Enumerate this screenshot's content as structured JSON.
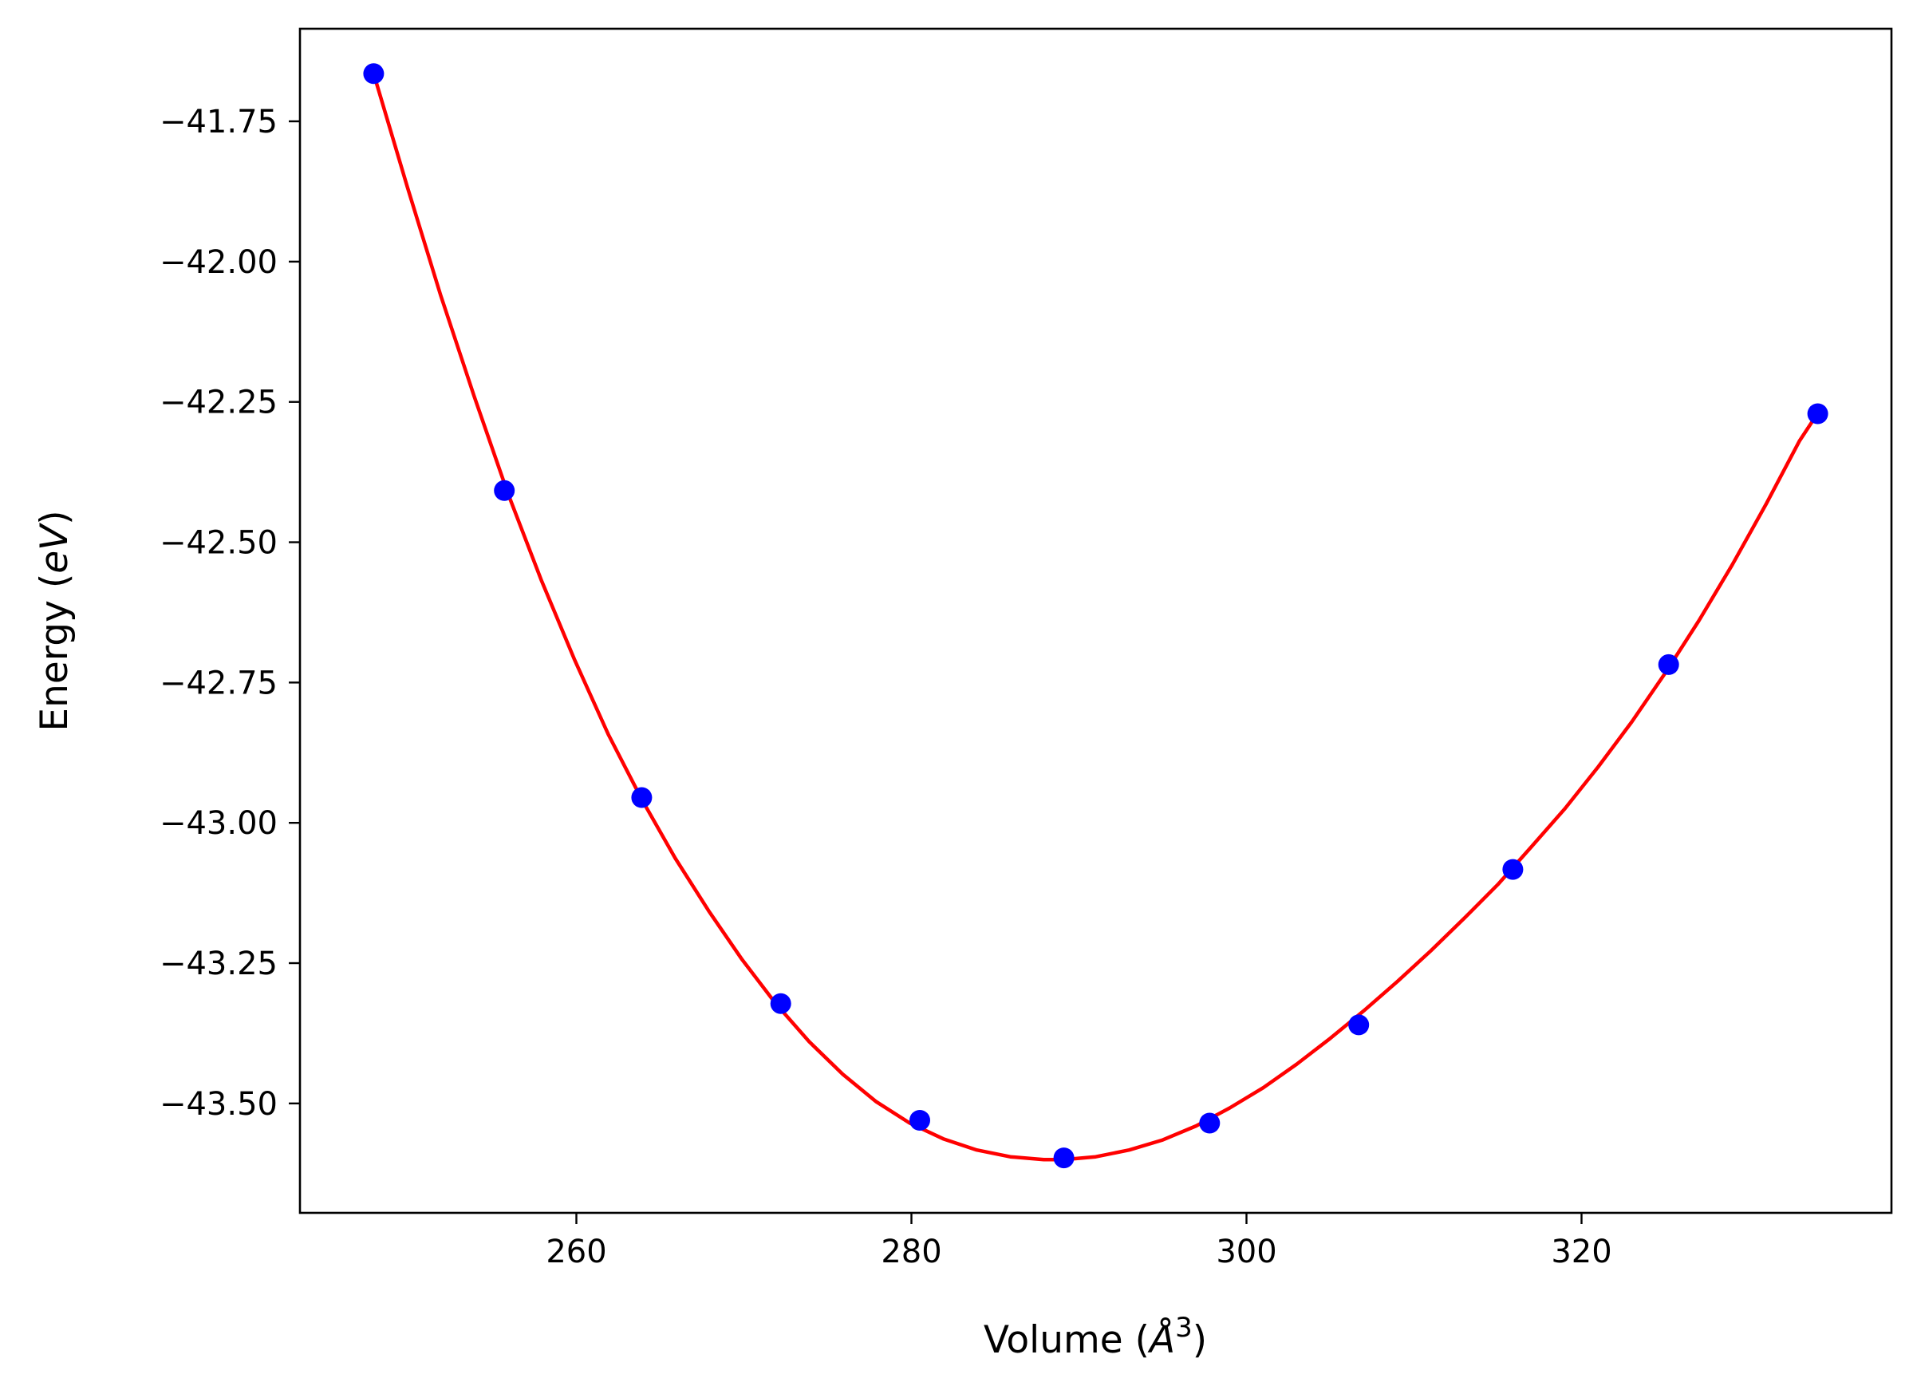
{
  "chart_data": {
    "type": "line",
    "xlabel": "Volume (Å³)",
    "xlabel_parts": {
      "pre": "Volume (",
      "sym": "Å",
      "sup": "3",
      "post": ")"
    },
    "ylabel": "Energy (eV)",
    "ylabel_parts": {
      "pre": "Energy (",
      "italic": "eV",
      "post": ")"
    },
    "xlim": [
      243.5,
      338.5
    ],
    "ylim": [
      -43.695,
      -41.585
    ],
    "xticks": [
      260,
      280,
      300,
      320
    ],
    "xtick_labels": [
      "260",
      "280",
      "300",
      "320"
    ],
    "yticks": [
      -41.75,
      -42.0,
      -42.25,
      -42.5,
      -42.75,
      -43.0,
      -43.25,
      -43.5
    ],
    "ytick_labels": [
      "−41.75",
      "−42.00",
      "−42.25",
      "−42.50",
      "−42.75",
      "−43.00",
      "−43.25",
      "−43.50"
    ],
    "grid": false,
    "series": [
      {
        "style": "line",
        "color": "#ff0000",
        "x": [
          247.9,
          249.9,
          251.9,
          253.9,
          255.9,
          257.9,
          259.9,
          261.9,
          263.9,
          265.9,
          267.9,
          269.9,
          271.9,
          273.9,
          275.9,
          277.9,
          279.9,
          281.9,
          283.9,
          285.9,
          287.9,
          289.1,
          291.0,
          293.0,
          295.0,
          297.0,
          299.0,
          301.0,
          303.0,
          305.0,
          307.0,
          309.0,
          311.0,
          313.0,
          315.0,
          317.0,
          319.0,
          321.0,
          323.0,
          325.0,
          327.0,
          329.0,
          331.0,
          333.0,
          334.1
        ],
        "y": [
          -41.665,
          -41.866,
          -42.06,
          -42.24,
          -42.412,
          -42.567,
          -42.71,
          -42.842,
          -42.958,
          -43.063,
          -43.157,
          -43.244,
          -43.322,
          -43.39,
          -43.448,
          -43.497,
          -43.535,
          -43.563,
          -43.583,
          -43.595,
          -43.6,
          -43.6,
          -43.595,
          -43.583,
          -43.565,
          -43.54,
          -43.508,
          -43.472,
          -43.43,
          -43.384,
          -43.335,
          -43.283,
          -43.228,
          -43.17,
          -43.11,
          -43.043,
          -42.975,
          -42.9,
          -42.82,
          -42.733,
          -42.64,
          -42.54,
          -42.433,
          -42.32,
          -42.27
        ]
      },
      {
        "style": "markers",
        "color": "#0000ff",
        "x": [
          247.9,
          255.7,
          263.9,
          272.2,
          280.5,
          289.1,
          297.8,
          306.7,
          315.9,
          325.2,
          334.1
        ],
        "y": [
          -41.665,
          -42.408,
          -42.955,
          -43.322,
          -43.53,
          -43.597,
          -43.535,
          -43.36,
          -43.083,
          -42.718,
          -42.271
        ]
      }
    ]
  }
}
